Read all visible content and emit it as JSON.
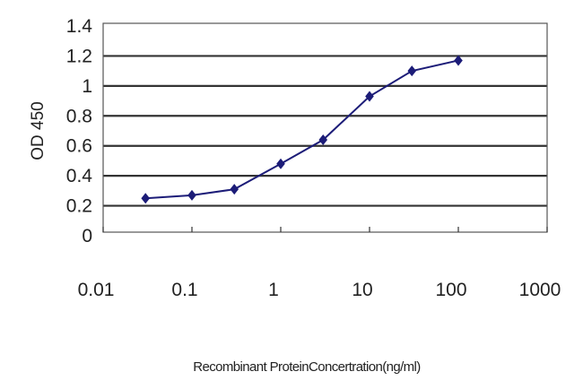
{
  "chart_data": {
    "type": "line",
    "title": "",
    "xlabel": "Recombinant ProteinConcertration(ng/ml)",
    "ylabel": "OD 450",
    "x_scale": "log",
    "xlim": [
      0.01,
      1000
    ],
    "ylim": [
      0,
      1.4
    ],
    "x_ticks": [
      "0.01",
      "0.1",
      "1",
      "10",
      "100",
      "1000"
    ],
    "y_ticks": [
      "0",
      "0.2",
      "0.4",
      "0.6",
      "0.8",
      "1",
      "1.2",
      "1.4"
    ],
    "grid": "horizontal",
    "legend": "none",
    "series": [
      {
        "x": [
          0.03,
          0.1,
          0.3,
          1,
          3,
          10,
          30,
          100
        ],
        "y": [
          0.25,
          0.27,
          0.31,
          0.48,
          0.64,
          0.93,
          1.1,
          1.17
        ],
        "color": "#1c1c78",
        "marker": "diamond"
      }
    ]
  }
}
